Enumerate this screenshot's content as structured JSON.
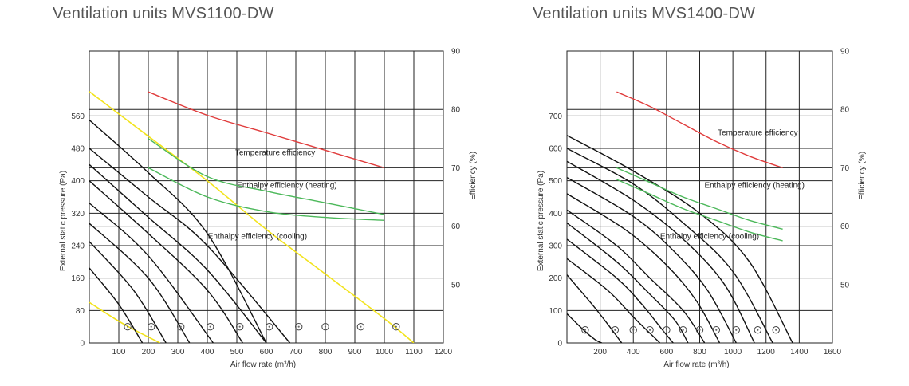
{
  "chart_data": [
    {
      "type": "line",
      "title": "Ventilation units MVS1100-DW",
      "xlabel": "Air flow rate (m³/h)",
      "ylabel": "External static pressure (Pa)",
      "y2label": "Efficiency (%)",
      "xlim": [
        0,
        1200
      ],
      "ylim": [
        0,
        720
      ],
      "x_ticks": [
        100,
        200,
        300,
        400,
        500,
        600,
        700,
        800,
        900,
        1000,
        1100,
        1200
      ],
      "x_tick_labels": [
        "100",
        "200",
        "300",
        "400",
        "500",
        "600",
        "700",
        "800",
        "900",
        "1000",
        "1100",
        "1200"
      ],
      "y_ticks": [
        0,
        80,
        160,
        240,
        320,
        400,
        480,
        560
      ],
      "y_tick_labels": [
        "0",
        "80",
        "160",
        "240",
        "320",
        "400",
        "480",
        "560"
      ],
      "y2_ticks": [
        50,
        60,
        70,
        80,
        90
      ],
      "y2_tick_labels": [
        "50",
        "60",
        "70",
        "80",
        "90"
      ],
      "y2lim": [
        40,
        90
      ],
      "grid": true,
      "colors": {
        "pressure": "#111111",
        "limit": "#f2e31c",
        "temperature": "#e03c3c",
        "enthalpy": "#4cb85a"
      },
      "pressure_curves": [
        {
          "x": [
            0,
            200,
            400,
            600
          ],
          "y": [
            550,
            420,
            270,
            0
          ]
        },
        {
          "x": [
            0,
            200,
            400,
            680
          ],
          "y": [
            480,
            360,
            240,
            0
          ]
        },
        {
          "x": [
            0,
            200,
            400,
            600
          ],
          "y": [
            440,
            310,
            180,
            0
          ]
        },
        {
          "x": [
            0,
            200,
            400,
            520
          ],
          "y": [
            400,
            270,
            130,
            0
          ]
        },
        {
          "x": [
            0,
            200,
            420
          ],
          "y": [
            345,
            215,
            0
          ]
        },
        {
          "x": [
            0,
            200,
            340
          ],
          "y": [
            295,
            160,
            0
          ]
        },
        {
          "x": [
            0,
            150,
            260
          ],
          "y": [
            250,
            130,
            0
          ]
        },
        {
          "x": [
            0,
            100,
            180
          ],
          "y": [
            185,
            95,
            0
          ]
        }
      ],
      "limit_curves": [
        {
          "x": [
            0,
            200,
            400,
            600,
            800,
            1000,
            1100
          ],
          "y": [
            620,
            510,
            400,
            280,
            170,
            60,
            0
          ]
        },
        {
          "x": [
            0,
            120,
            240
          ],
          "y": [
            100,
            45,
            0
          ]
        }
      ],
      "efficiency_curves": [
        {
          "name": "Temperature efficiency",
          "color": "#e03c3c",
          "x": [
            200,
            400,
            600,
            800,
            1000
          ],
          "y": [
            83,
            79,
            76,
            73,
            70
          ]
        },
        {
          "name": "Enthalpy efficiency (heating)",
          "color": "#4cb85a",
          "x": [
            200,
            400,
            600,
            800,
            1000
          ],
          "y": [
            75,
            68.5,
            66,
            64,
            62
          ]
        },
        {
          "name": "Enthalpy efficiency (cooling)",
          "color": "#4cb85a",
          "x": [
            200,
            400,
            600,
            800,
            1000
          ],
          "y": [
            70,
            65,
            62.5,
            61.5,
            61
          ]
        }
      ],
      "annotations": [
        {
          "text": "Temperature efficiency",
          "x": 630,
          "y": 72.2
        },
        {
          "text": "Enthalpy efficiency (heating)",
          "x": 670,
          "y": 66.6
        },
        {
          "text": "Enthalpy efficiency (cooling)",
          "x": 570,
          "y": 57.8
        }
      ],
      "operating_points_x": [
        130,
        210,
        310,
        410,
        510,
        610,
        710,
        800,
        920,
        1040
      ],
      "operating_points_y": 40
    },
    {
      "type": "line",
      "title": "Ventilation units MVS1400-DW",
      "xlabel": "Air flow rate (m³/h)",
      "ylabel": "External static pressure (Pa)",
      "y2label": "Efficiency (%)",
      "xlim": [
        0,
        1600
      ],
      "ylim": [
        0,
        900
      ],
      "x_ticks": [
        200,
        400,
        600,
        800,
        1000,
        1200,
        1400,
        1600
      ],
      "x_tick_labels": [
        "200",
        "400",
        "600",
        "800",
        "1000",
        "1200",
        "1400",
        "1600"
      ],
      "y_ticks": [
        0,
        100,
        200,
        300,
        400,
        500,
        600,
        700
      ],
      "y_tick_labels": [
        "0",
        "100",
        "200",
        "300",
        "400",
        "500",
        "600",
        "700"
      ],
      "y2_ticks": [
        50,
        60,
        70,
        80,
        90
      ],
      "y2_tick_labels": [
        "50",
        "60",
        "70",
        "80",
        "90"
      ],
      "y2lim": [
        40,
        90
      ],
      "grid": true,
      "colors": {
        "pressure": "#111111",
        "temperature": "#e03c3c",
        "enthalpy": "#4cb85a"
      },
      "pressure_curves": [
        {
          "x": [
            0,
            400,
            800,
            1100,
            1360
          ],
          "y": [
            640,
            530,
            400,
            250,
            0
          ]
        },
        {
          "x": [
            0,
            400,
            700,
            1000,
            1240
          ],
          "y": [
            600,
            490,
            370,
            220,
            0
          ]
        },
        {
          "x": [
            0,
            400,
            700,
            950,
            1130
          ],
          "y": [
            560,
            440,
            320,
            180,
            0
          ]
        },
        {
          "x": [
            0,
            400,
            650,
            850,
            1020
          ],
          "y": [
            510,
            390,
            280,
            160,
            0
          ]
        },
        {
          "x": [
            0,
            350,
            600,
            780,
            920
          ],
          "y": [
            460,
            350,
            240,
            130,
            0
          ]
        },
        {
          "x": [
            0,
            300,
            500,
            700,
            830
          ],
          "y": [
            410,
            300,
            200,
            100,
            0
          ]
        },
        {
          "x": [
            0,
            300,
            500,
            650,
            730
          ],
          "y": [
            370,
            250,
            150,
            70,
            0
          ]
        },
        {
          "x": [
            0,
            300,
            450,
            560,
            640
          ],
          "y": [
            320,
            200,
            120,
            50,
            0
          ]
        },
        {
          "x": [
            0,
            250,
            400,
            500,
            560
          ],
          "y": [
            260,
            160,
            80,
            30,
            0
          ]
        },
        {
          "x": [
            0,
            150,
            250,
            330
          ],
          "y": [
            210,
            120,
            55,
            0
          ]
        },
        {
          "x": [
            0,
            100,
            170,
            210
          ],
          "y": [
            90,
            40,
            10,
            0
          ]
        }
      ],
      "efficiency_curves": [
        {
          "name": "Temperature efficiency",
          "color": "#e03c3c",
          "x": [
            300,
            500,
            700,
            900,
            1100,
            1300
          ],
          "y": [
            83,
            80.5,
            77.5,
            74.5,
            72,
            70
          ]
        },
        {
          "name": "Enthalpy efficiency (heating)",
          "color": "#4cb85a",
          "x": [
            300,
            500,
            700,
            900,
            1100,
            1300
          ],
          "y": [
            70,
            67.5,
            65,
            63,
            61,
            59.5
          ]
        },
        {
          "name": "Enthalpy efficiency (cooling)",
          "color": "#4cb85a",
          "x": [
            300,
            500,
            700,
            900,
            1100,
            1300
          ],
          "y": [
            68,
            65.5,
            63,
            61,
            59,
            57.5
          ]
        }
      ],
      "annotations": [
        {
          "text": "Temperature efficiency",
          "x": 1150,
          "y": 75.6
        },
        {
          "text": "Enthalpy efficiency (heating)",
          "x": 1130,
          "y": 66.6
        },
        {
          "text": "Enthalpy efficiency (cooling)",
          "x": 860,
          "y": 57.8
        }
      ],
      "operating_points_x": [
        110,
        290,
        400,
        500,
        600,
        700,
        800,
        900,
        1020,
        1150,
        1260
      ],
      "operating_points_y": 40
    }
  ]
}
